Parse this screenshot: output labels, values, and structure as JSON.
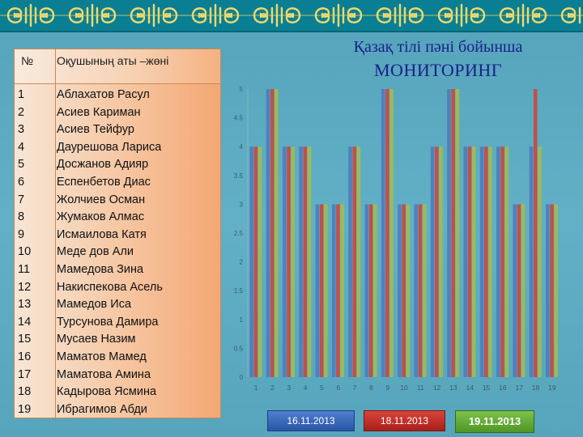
{
  "title": {
    "line1": "Қазақ тілі пәні бойынша",
    "line2": "МОНИТОРИНГ"
  },
  "table": {
    "headers": {
      "num": "№",
      "name": "Оқушының аты –жөні"
    },
    "rows": [
      {
        "num": "1",
        "name": "Аблахатов Расул"
      },
      {
        "num": "2",
        "name": "Асиев Кариман"
      },
      {
        "num": "3",
        "name": "Асиев Тейфур"
      },
      {
        "num": "4",
        "name": "Даурешова Лариса"
      },
      {
        "num": "5",
        "name": "Досжанов Адияр"
      },
      {
        "num": "6",
        "name": "Еспенбетов Диас"
      },
      {
        "num": "7",
        "name": "Жолчиев Осман"
      },
      {
        "num": "8",
        "name": "Жумаков Алмас"
      },
      {
        "num": "9",
        "name": "Исмаилова Катя"
      },
      {
        "num": "10",
        "name": "Меде дов Али"
      },
      {
        "num": "11",
        "name": "Мамедова Зина"
      },
      {
        "num": "12",
        "name": "Накиспекова Асель"
      },
      {
        "num": "13",
        "name": "Мамедов Иса"
      },
      {
        "num": "14",
        "name": "Турсунова Дамира"
      },
      {
        "num": "15",
        "name": "Мусаев Назим"
      },
      {
        "num": "16",
        "name": "Маматов Мамед"
      },
      {
        "num": "17",
        "name": "Маматова Амина"
      },
      {
        "num": "18",
        "name": "Кадырова Ясмина"
      },
      {
        "num": "19",
        "name": "Ибрагимов Абди"
      }
    ]
  },
  "chart_data": {
    "type": "bar",
    "categories": [
      "1",
      "2",
      "3",
      "4",
      "5",
      "6",
      "7",
      "8",
      "9",
      "10",
      "11",
      "12",
      "13",
      "14",
      "15",
      "16",
      "17",
      "18",
      "19"
    ],
    "yticks": [
      "0",
      "0.5",
      "1",
      "1.5",
      "2",
      "2.5",
      "3",
      "3.5",
      "4",
      "4.5",
      "5"
    ],
    "ylim": [
      0,
      5
    ],
    "grid": false,
    "series": [
      {
        "name": "16.11.2013",
        "color": "#4f81bd",
        "values": [
          4,
          5,
          4,
          4,
          3,
          3,
          4,
          3,
          5,
          3,
          3,
          4,
          5,
          4,
          4,
          4,
          3,
          4,
          3
        ]
      },
      {
        "name": "18.11.2013",
        "color": "#c0504d",
        "values": [
          4,
          5,
          4,
          4,
          3,
          3,
          4,
          3,
          5,
          3,
          3,
          4,
          5,
          4,
          4,
          4,
          3,
          5,
          3
        ]
      },
      {
        "name": "19.11.2013",
        "color": "#9bbb59",
        "values": [
          4,
          5,
          4,
          4,
          3,
          3,
          4,
          3,
          5,
          3,
          3,
          4,
          5,
          4,
          4,
          4,
          3,
          4,
          3
        ]
      }
    ]
  },
  "legend_buttons": [
    {
      "label": "16.11.2013"
    },
    {
      "label": "18.11.2013"
    },
    {
      "label": "19.11.2013"
    }
  ],
  "colors": {
    "background": "#5aa7bd",
    "ornament": "#0a7f93",
    "title": "#1a1f8a"
  }
}
